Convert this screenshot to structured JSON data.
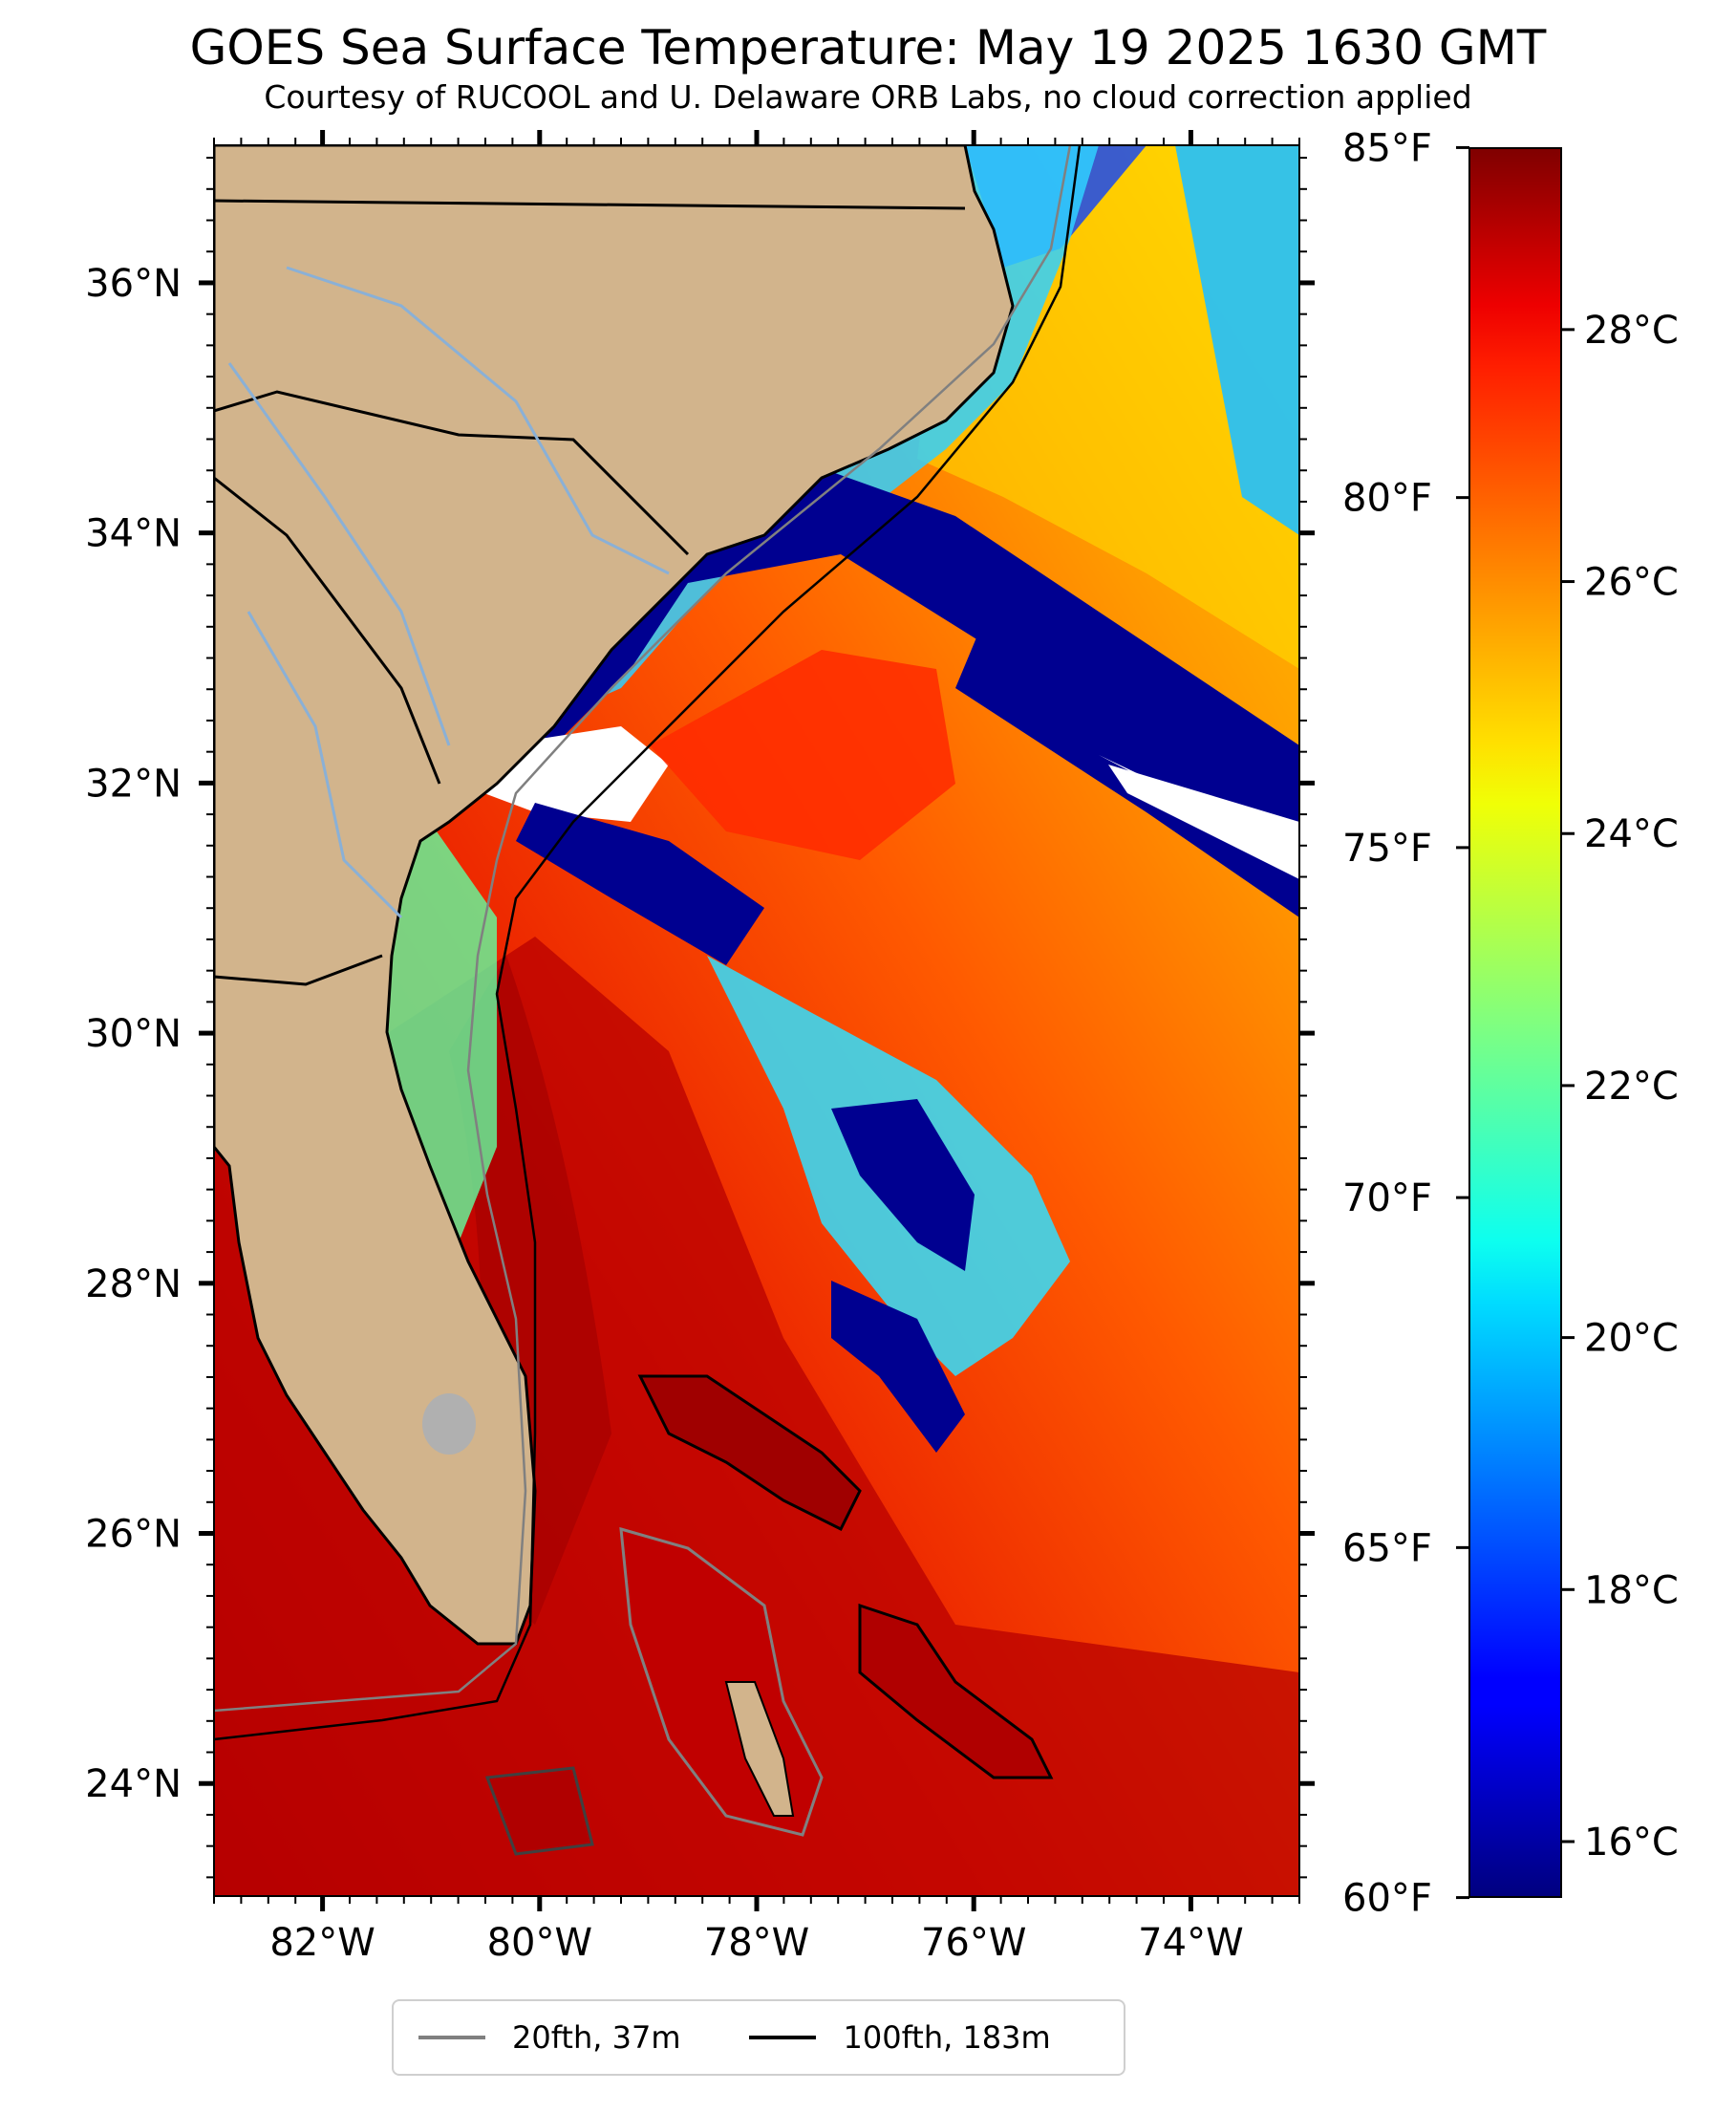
{
  "title": "GOES Sea Surface Temperature: May 19 2025 1630 GMT",
  "subtitle": "Courtesy of RUCOOL and U. Delaware ORB Labs, no cloud correction applied",
  "map": {
    "lon_range": [
      -83,
      -73
    ],
    "lat_range": [
      23.1,
      37.1
    ],
    "lon_ticks": [
      {
        "value": -82,
        "label": "82°W"
      },
      {
        "value": -80,
        "label": "80°W"
      },
      {
        "value": -78,
        "label": "78°W"
      },
      {
        "value": -76,
        "label": "76°W"
      },
      {
        "value": -74,
        "label": "74°W"
      }
    ],
    "lat_ticks": [
      {
        "value": 24,
        "label": "24°N"
      },
      {
        "value": 26,
        "label": "26°N"
      },
      {
        "value": 28,
        "label": "28°N"
      },
      {
        "value": 30,
        "label": "30°N"
      },
      {
        "value": 32,
        "label": "32°N"
      },
      {
        "value": 34,
        "label": "34°N"
      },
      {
        "value": 36,
        "label": "36°N"
      }
    ],
    "land_color": "#d2b48c",
    "no_data_color": "#ffffff"
  },
  "colorbar": {
    "colormap": "jet",
    "celsius_range": [
      15.56,
      29.44
    ],
    "fahrenheit_ticks": [
      {
        "value": 60,
        "label": "60°F"
      },
      {
        "value": 65,
        "label": "65°F"
      },
      {
        "value": 70,
        "label": "70°F"
      },
      {
        "value": 75,
        "label": "75°F"
      },
      {
        "value": 80,
        "label": "80°F"
      },
      {
        "value": 85,
        "label": "85°F"
      }
    ],
    "celsius_ticks": [
      {
        "value": 16,
        "label": "16°C"
      },
      {
        "value": 18,
        "label": "18°C"
      },
      {
        "value": 20,
        "label": "20°C"
      },
      {
        "value": 22,
        "label": "22°C"
      },
      {
        "value": 24,
        "label": "24°C"
      },
      {
        "value": 26,
        "label": "26°C"
      },
      {
        "value": 28,
        "label": "28°C"
      }
    ]
  },
  "legend": {
    "items": [
      {
        "label": "20fth, 37m",
        "color": "#808080"
      },
      {
        "label": "100fth, 183m",
        "color": "#000000"
      }
    ]
  }
}
